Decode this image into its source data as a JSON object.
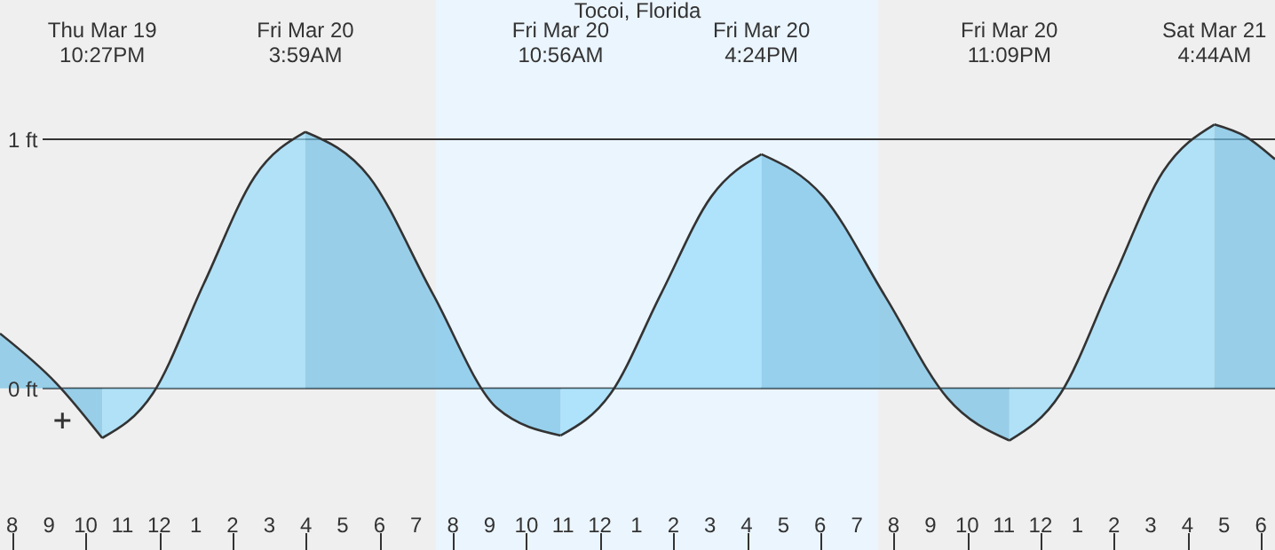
{
  "chart_data": {
    "type": "area",
    "title": "Tocoi, Florida",
    "xlim": [
      "--03-19T19:40",
      "--03-21T06:23"
    ],
    "ylim": [
      -0.65,
      1.56
    ],
    "xticks": [
      {
        "value": "--03-19T20:00",
        "label": "8"
      },
      {
        "value": "--03-19T21:00",
        "label": "9"
      },
      {
        "value": "--03-19T22:00",
        "label": "10"
      },
      {
        "value": "--03-19T23:00",
        "label": "11"
      },
      {
        "value": "--03-20T00:00",
        "label": "12"
      },
      {
        "value": "--03-20T01:00",
        "label": "1"
      },
      {
        "value": "--03-20T02:00",
        "label": "2"
      },
      {
        "value": "--03-20T03:00",
        "label": "3"
      },
      {
        "value": "--03-20T04:00",
        "label": "4"
      },
      {
        "value": "--03-20T05:00",
        "label": "5"
      },
      {
        "value": "--03-20T06:00",
        "label": "6"
      },
      {
        "value": "--03-20T07:00",
        "label": "7"
      },
      {
        "value": "--03-20T08:00",
        "label": "8"
      },
      {
        "value": "--03-20T09:00",
        "label": "9"
      },
      {
        "value": "--03-20T10:00",
        "label": "10"
      },
      {
        "value": "--03-20T11:00",
        "label": "11"
      },
      {
        "value": "--03-20T12:00",
        "label": "12"
      },
      {
        "value": "--03-20T13:00",
        "label": "1"
      },
      {
        "value": "--03-20T14:00",
        "label": "2"
      },
      {
        "value": "--03-20T15:00",
        "label": "3"
      },
      {
        "value": "--03-20T16:00",
        "label": "4"
      },
      {
        "value": "--03-20T17:00",
        "label": "5"
      },
      {
        "value": "--03-20T18:00",
        "label": "6"
      },
      {
        "value": "--03-20T19:00",
        "label": "7"
      },
      {
        "value": "--03-20T20:00",
        "label": "8"
      },
      {
        "value": "--03-20T21:00",
        "label": "9"
      },
      {
        "value": "--03-20T22:00",
        "label": "10"
      },
      {
        "value": "--03-20T23:00",
        "label": "11"
      },
      {
        "value": "--03-21T00:00",
        "label": "12"
      },
      {
        "value": "--03-21T01:00",
        "label": "1"
      },
      {
        "value": "--03-21T02:00",
        "label": "2"
      },
      {
        "value": "--03-21T03:00",
        "label": "3"
      },
      {
        "value": "--03-21T04:00",
        "label": "4"
      },
      {
        "value": "--03-21T05:00",
        "label": "5"
      },
      {
        "value": "--03-21T06:00",
        "label": "6"
      }
    ],
    "yticks": [
      {
        "value": 0,
        "label": "0 ft"
      },
      {
        "value": 1,
        "label": "1 ft"
      }
    ],
    "grid": "y",
    "marker": "none",
    "bands": [
      {
        "axis": "x",
        "from": "--03-20T07:32",
        "to": "--03-20T19:35",
        "color": "#ebf5fe"
      }
    ],
    "series": [
      {
        "color": "#73c1e6",
        "x": [
          "--03-19T19:40",
          "--03-19T21:12",
          "--03-19T22:27"
        ],
        "values": [
          0.22,
          0.02,
          -0.2
        ]
      },
      {
        "color": "#95dcfb",
        "x": [
          "--03-19T22:27",
          "--03-19T23:50",
          "--03-20T01:13",
          "--03-20T02:36",
          "--03-20T03:59"
        ],
        "values": [
          -0.2,
          -0.02,
          0.42,
          0.85,
          1.03
        ]
      },
      {
        "color": "#73c1e6",
        "x": [
          "--03-20T03:59",
          "--03-20T05:43",
          "--03-20T07:27",
          "--03-20T09:12",
          "--03-20T10:56"
        ],
        "values": [
          1.03,
          0.85,
          0.38,
          -0.08,
          -0.19
        ]
      },
      {
        "color": "#95dcfb",
        "x": [
          "--03-20T10:56",
          "--03-20T12:18",
          "--03-20T13:40",
          "--03-20T15:02",
          "--03-20T16:24"
        ],
        "values": [
          -0.19,
          -0.02,
          0.38,
          0.77,
          0.94
        ]
      },
      {
        "color": "#73c1e6",
        "x": [
          "--03-20T16:24",
          "--03-20T18:05",
          "--03-20T19:46",
          "--03-20T21:28",
          "--03-20T23:09"
        ],
        "values": [
          0.94,
          0.77,
          0.37,
          -0.04,
          -0.21
        ]
      },
      {
        "color": "#95dcfb",
        "x": [
          "--03-20T23:09",
          "--03-21T00:33",
          "--03-21T01:57",
          "--03-21T03:20",
          "--03-21T04:44"
        ],
        "values": [
          -0.21,
          -0.02,
          0.43,
          0.87,
          1.06
        ]
      },
      {
        "color": "#73c1e6",
        "x": [
          "--03-21T04:44",
          "--03-21T05:36",
          "--03-21T06:23"
        ],
        "values": [
          1.06,
          1.01,
          0.92
        ]
      },
      {
        "type": "scatter",
        "marker": "cross",
        "color": "#333333",
        "x": [
          "--03-19T21:22"
        ],
        "values": [
          -0.13
        ]
      }
    ],
    "annotations": [
      "Thu Mar 19\n10:27PM",
      "Fri Mar 20\n3:59AM",
      "Fri Mar 20\n10:56AM",
      "Fri Mar 20\n4:24PM",
      "Fri Mar 20\n11:09PM",
      "Sat Mar 21\n4:44AM"
    ]
  }
}
